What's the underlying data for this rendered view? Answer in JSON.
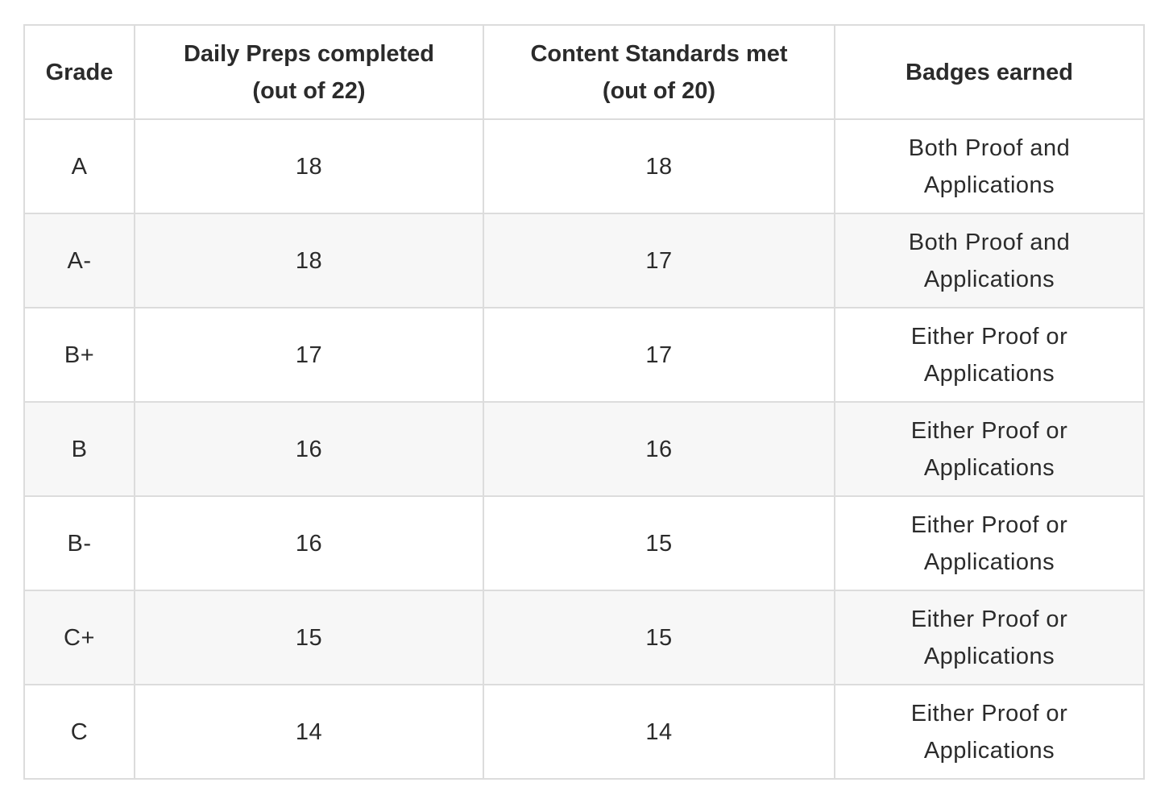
{
  "table": {
    "headers": [
      [
        "Grade"
      ],
      [
        "Daily Preps completed",
        "(out of 22)"
      ],
      [
        "Content Standards met",
        "(out of 20)"
      ],
      [
        "Badges earned"
      ]
    ],
    "rows": [
      {
        "grade": "A",
        "preps": "18",
        "standards": "18",
        "badges": [
          "Both Proof and",
          "Applications"
        ]
      },
      {
        "grade": "A-",
        "preps": "18",
        "standards": "17",
        "badges": [
          "Both Proof and",
          "Applications"
        ]
      },
      {
        "grade": "B+",
        "preps": "17",
        "standards": "17",
        "badges": [
          "Either Proof or",
          "Applications"
        ]
      },
      {
        "grade": "B",
        "preps": "16",
        "standards": "16",
        "badges": [
          "Either Proof or",
          "Applications"
        ]
      },
      {
        "grade": "B-",
        "preps": "16",
        "standards": "15",
        "badges": [
          "Either Proof or",
          "Applications"
        ]
      },
      {
        "grade": "C+",
        "preps": "15",
        "standards": "15",
        "badges": [
          "Either Proof or",
          "Applications"
        ]
      },
      {
        "grade": "C",
        "preps": "14",
        "standards": "14",
        "badges": [
          "Either Proof or",
          "Applications"
        ]
      }
    ]
  }
}
